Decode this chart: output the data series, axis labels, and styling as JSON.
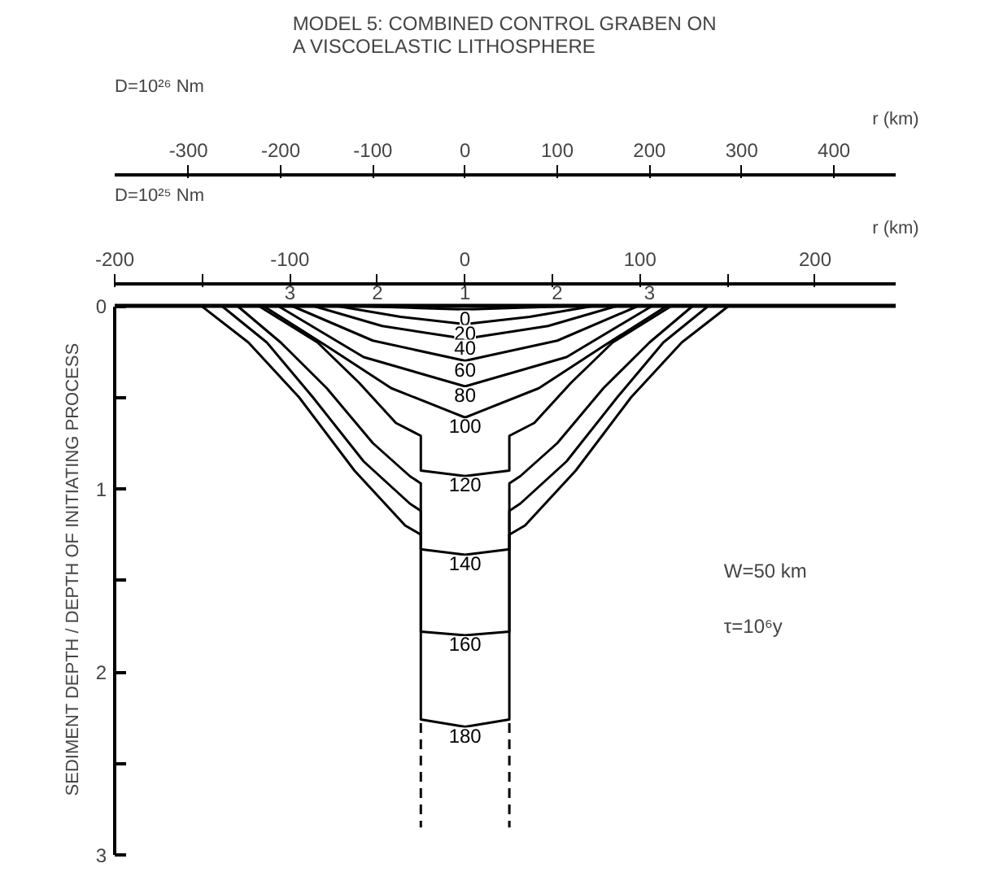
{
  "chart_data": {
    "type": "line",
    "title": "MODEL 5: COMBINED CONTROL GRABEN ON\nA VISCOELASTIC LITHOSPHERE",
    "ylabel": "SEDIMENT DEPTH / DEPTH OF INITIATING PROCESS",
    "xlabel": "r (km)",
    "x2label": "r (km)",
    "xlim": [
      -380,
      467
    ],
    "xticks": [
      -300,
      -200,
      -100,
      0,
      100,
      200,
      300,
      400
    ],
    "x2lim": [
      -200,
      246
    ],
    "x2ticks": [
      -200,
      {
        "value": -150,
        "label": null
      },
      -100,
      {
        "value": -50,
        "label": null
      },
      0,
      {
        "value": 50,
        "label": null
      },
      100,
      {
        "value": 150,
        "label": null
      },
      200
    ],
    "ylim": [
      3,
      0
    ],
    "yticks": [
      0,
      {
        "value": 0.5,
        "label": null
      },
      1,
      {
        "value": 1.5,
        "label": null
      },
      2,
      {
        "value": 2.5,
        "label": null
      },
      3
    ],
    "grid": false,
    "marker": "none",
    "line_style": "solid",
    "ref_lines": [
      {
        "axis": "y",
        "value": 0,
        "color": "#000000"
      }
    ],
    "series": [
      {
        "name": "0",
        "color": "#000000",
        "x": [
          -125,
          -60,
          0,
          60,
          125
        ],
        "values": [
          0,
          0.01,
          0.02,
          0.01,
          0
        ]
      },
      {
        "name": "20",
        "color": "#000000",
        "x": [
          -140,
          -70,
          0,
          70,
          140
        ],
        "values": [
          0,
          0.06,
          0.1,
          0.06,
          0
        ]
      },
      {
        "name": "40",
        "color": "#000000",
        "x": [
          -165,
          -90,
          0,
          90,
          165
        ],
        "values": [
          0,
          0.11,
          0.18,
          0.11,
          0
        ]
      },
      {
        "name": "60",
        "color": "#000000",
        "x": [
          -188,
          -100,
          0,
          100,
          188
        ],
        "values": [
          0,
          0.19,
          0.3,
          0.19,
          0
        ]
      },
      {
        "name": "80",
        "color": "#000000",
        "x": [
          -203,
          -110,
          0,
          110,
          203
        ],
        "values": [
          0,
          0.28,
          0.44,
          0.28,
          0
        ]
      },
      {
        "name": "100",
        "color": "#000000",
        "x": [
          -219,
          -150,
          -80,
          0,
          80,
          150,
          219
        ],
        "values": [
          0,
          0.22,
          0.45,
          0.61,
          0.45,
          0.22,
          0
        ]
      },
      {
        "name": "120",
        "color": "#000000",
        "x": [
          -224,
          -160,
          -115,
          -75,
          -48,
          -48,
          0,
          48,
          48,
          75,
          115,
          160,
          224
        ],
        "values": [
          0,
          0.2,
          0.42,
          0.64,
          0.71,
          0.9,
          0.93,
          0.9,
          0.71,
          0.64,
          0.42,
          0.2,
          0
        ]
      },
      {
        "name": "140",
        "color": "#000000",
        "x": [
          -247,
          -200,
          -150,
          -100,
          -60,
          -48,
          -48,
          0,
          48,
          48,
          60,
          100,
          150,
          200,
          247
        ],
        "values": [
          0,
          0.2,
          0.45,
          0.75,
          0.93,
          0.97,
          1.33,
          1.36,
          1.33,
          0.97,
          0.93,
          0.75,
          0.45,
          0.2,
          0
        ]
      },
      {
        "name": "160",
        "color": "#000000",
        "x": [
          -264,
          -215,
          -165,
          -110,
          -60,
          -48,
          -48,
          0,
          48,
          48,
          60,
          110,
          165,
          215,
          264
        ],
        "values": [
          0,
          0.2,
          0.5,
          0.85,
          1.08,
          1.12,
          1.78,
          1.8,
          1.78,
          1.12,
          1.08,
          0.85,
          0.5,
          0.2,
          0
        ]
      },
      {
        "name": "180",
        "color": "#000000",
        "x": [
          -286,
          -235,
          -180,
          -120,
          -65,
          -48,
          -48,
          0,
          48,
          48,
          65,
          120,
          180,
          235,
          286
        ],
        "values": [
          0,
          0.2,
          0.5,
          0.9,
          1.2,
          1.25,
          2.26,
          2.3,
          2.26,
          1.25,
          1.2,
          0.9,
          0.5,
          0.2,
          0
        ]
      },
      {
        "color": "#000000",
        "line_style": "dashed",
        "x": [
          -48,
          -48,
          null,
          48,
          48
        ],
        "values": [
          2.28,
          2.85,
          null,
          2.28,
          2.85
        ]
      }
    ],
    "annotations": [
      {
        "text": "3",
        "x": -190,
        "y": 0
      },
      {
        "text": "2",
        "x": -95,
        "y": 0
      },
      {
        "text": "1",
        "x": 0,
        "y": 0
      },
      {
        "text": "2",
        "x": 100,
        "y": 0
      },
      {
        "text": "3",
        "x": 200,
        "y": 0
      },
      "D=10²⁶ Nm",
      "D=10²⁵ Nm",
      "W=50 km",
      "τ=10⁶y"
    ]
  }
}
